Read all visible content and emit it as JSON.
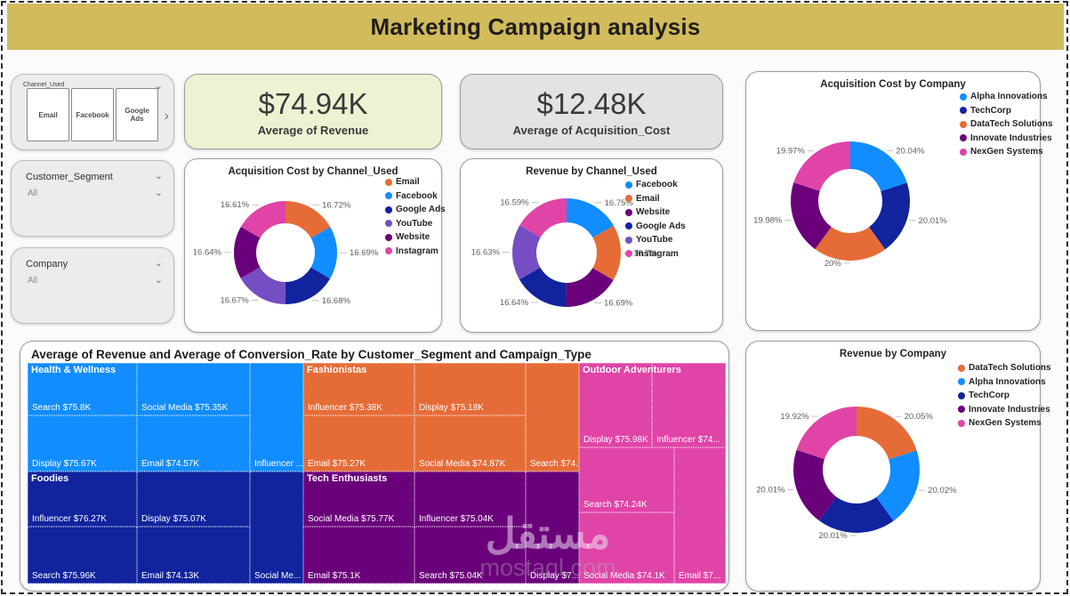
{
  "header": {
    "title": "Marketing Campaign analysis",
    "bg": "#d2bb5b"
  },
  "filters": {
    "channel": {
      "label": "Channel_Used",
      "buttons": [
        "Email",
        "Facebook",
        "Google Ads"
      ],
      "nav_arrow": "›",
      "chevron": "⌄"
    },
    "segment": {
      "label": "Customer_Segment",
      "value": "All"
    },
    "company": {
      "label": "Company",
      "value": "All"
    }
  },
  "kpis": [
    {
      "value": "$74.94K",
      "label": "Average of Revenue",
      "bg": "#edf2d3"
    },
    {
      "value": "$12.48K",
      "label": "Average of Acquisition_Cost",
      "bg": "#e3e3e3"
    }
  ],
  "watermark": {
    "text": "مستقل",
    "domain": "mostaql.com"
  },
  "chart_data": [
    {
      "type": "pie",
      "title": "Acquisition Cost by Channel_Used",
      "legend_position": "right",
      "slices": [
        {
          "name": "Email",
          "value": 16.72,
          "label": "16.72%",
          "color": "#E66C37"
        },
        {
          "name": "Facebook",
          "value": 16.69,
          "label": "16.69%",
          "color": "#118DFF"
        },
        {
          "name": "Google Ads",
          "value": 16.68,
          "label": "16.68%",
          "color": "#12239E"
        },
        {
          "name": "YouTube",
          "value": 16.67,
          "label": "16.67%",
          "color": "#744EC2"
        },
        {
          "name": "Website",
          "value": 16.64,
          "label": "16.64%",
          "color": "#6B007B"
        },
        {
          "name": "Instagram",
          "value": 16.61,
          "label": "16.61%",
          "color": "#E044A7"
        }
      ]
    },
    {
      "type": "pie",
      "title": "Revenue by Channel_Used",
      "legend_position": "right",
      "slices": [
        {
          "name": "Facebook",
          "value": 16.75,
          "label": "16.75%",
          "color": "#118DFF"
        },
        {
          "name": "Email",
          "value": 16.7,
          "label": "16.7%",
          "color": "#E66C37"
        },
        {
          "name": "Website",
          "value": 16.69,
          "label": "16.69%",
          "color": "#6B007B"
        },
        {
          "name": "Google Ads",
          "value": 16.64,
          "label": "16.64%",
          "color": "#12239E"
        },
        {
          "name": "YouTube",
          "value": 16.63,
          "label": "16.63%",
          "color": "#744EC2"
        },
        {
          "name": "Instagram",
          "value": 16.59,
          "label": "16.59%",
          "color": "#E044A7"
        }
      ]
    },
    {
      "type": "pie",
      "title": "Acquisition Cost by Company",
      "legend_position": "top-right",
      "slices": [
        {
          "name": "Alpha Innovations",
          "value": 20.04,
          "label": "20.04%",
          "color": "#118DFF"
        },
        {
          "name": "TechCorp",
          "value": 20.01,
          "label": "20.01%",
          "color": "#12239E"
        },
        {
          "name": "DataTech Solutions",
          "value": 20.0,
          "label": "20%",
          "color": "#E66C37"
        },
        {
          "name": "Innovate Industries",
          "value": 19.98,
          "label": "19.98%",
          "color": "#6B007B"
        },
        {
          "name": "NexGen Systems",
          "value": 19.97,
          "label": "19.97%",
          "color": "#E044A7"
        }
      ]
    },
    {
      "type": "pie",
      "title": "Revenue by Company",
      "legend_position": "top-right",
      "slices": [
        {
          "name": "DataTech Solutions",
          "value": 20.05,
          "label": "20.05%",
          "color": "#E66C37"
        },
        {
          "name": "Alpha Innovations",
          "value": 20.02,
          "label": "20.02%",
          "color": "#118DFF"
        },
        {
          "name": "TechCorp",
          "value": 20.01,
          "label": "20.01%",
          "color": "#12239E"
        },
        {
          "name": "Innovate Industries",
          "value": 20.01,
          "label": "20.01%",
          "color": "#6B007B"
        },
        {
          "name": "NexGen Systems",
          "value": 19.92,
          "label": "19.92%",
          "color": "#E044A7"
        }
      ]
    },
    {
      "type": "treemap",
      "title": "Average of Revenue and Average of Conversion_Rate by Customer_Segment and Campaign_Type",
      "groups": [
        {
          "name": "Health & Wellness",
          "color": "#118DFF",
          "cells": [
            "Search $75.8K",
            "Social Media $75.35K",
            "Display $75.67K",
            "Email $74.57K",
            "Influencer ..."
          ]
        },
        {
          "name": "Fashionistas",
          "color": "#E66C37",
          "cells": [
            "Influencer $75.38K",
            "Display $75.18K",
            "Email $75.27K",
            "Social Media $74.87K",
            "Search $74..."
          ]
        },
        {
          "name": "Outdoor Adventurers",
          "color": "#E044A7",
          "cells": [
            "Display $75.98K",
            "Influencer $74...",
            "Search $74.24K",
            "Email $7...",
            "Social Media $74.1K"
          ]
        },
        {
          "name": "Foodies",
          "color": "#12239E",
          "cells": [
            "Influencer $76.27K",
            "Display $75.07K",
            "Search $75.96K",
            "Email $74.13K",
            "Social Me..."
          ]
        },
        {
          "name": "Tech Enthusiasts",
          "color": "#6B007B",
          "cells": [
            "Social Media $75.77K",
            "Influencer $75.04K",
            "Email $75.1K",
            "Search $75.04K",
            "Display $7..."
          ]
        }
      ]
    }
  ]
}
